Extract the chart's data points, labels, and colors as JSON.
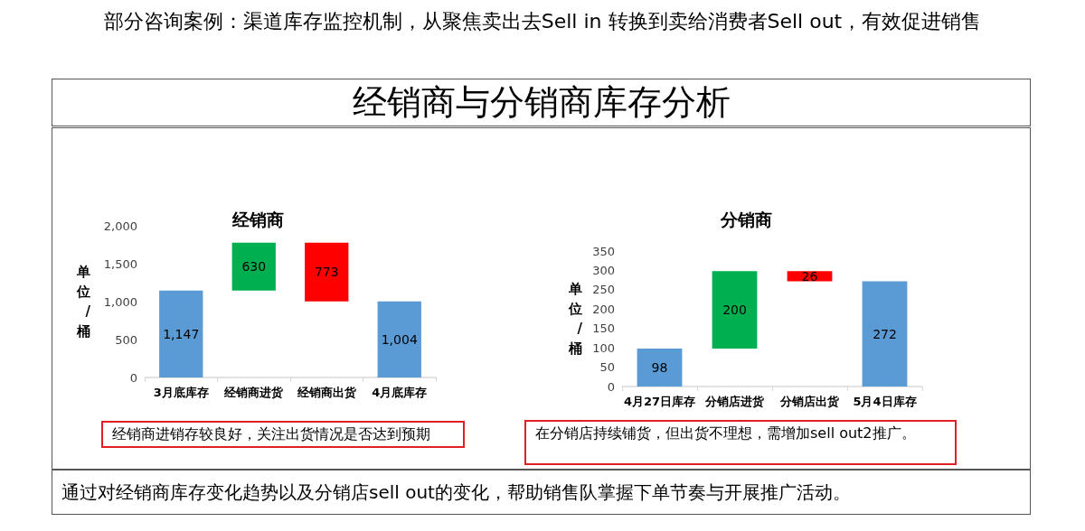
{
  "chart_data": [
    {
      "type": "bar",
      "title": "经销商",
      "ylabel": "单位/桶",
      "categories": [
        "3月底库存",
        "经销商进货",
        "经销商出货",
        "4月底库存"
      ],
      "values": [
        1147,
        630,
        773,
        1004
      ],
      "base": [
        0,
        1147,
        1004,
        0
      ],
      "colors": [
        "#5b9bd5",
        "#00b050",
        "#ff0000",
        "#5b9bd5"
      ],
      "value_labels": [
        "1,147",
        "630",
        "773",
        "1,004"
      ],
      "ylim": [
        0,
        2000
      ],
      "yticks": [
        0,
        500,
        {
          "value": 1000,
          "label": "1,000"
        },
        {
          "value": 1500,
          "label": "1,500"
        },
        {
          "value": 2000,
          "label": "2,000"
        }
      ],
      "grid": false,
      "annotations": [
        "部分咨询案例：渠道库存监控机制，从聚焦卖出去Sell in 转换到卖给消费者Sell out，有效促进销售",
        "经销商与分销商库存分析",
        "经销商进销存较良好，关注出货情况是否达到预期"
      ]
    },
    {
      "type": "bar",
      "title": "分销商",
      "ylabel": "单位/桶",
      "categories": [
        "4月27日库存",
        "分销店进货",
        "分销店出货",
        "5月4日库存"
      ],
      "values": [
        98,
        200,
        26,
        272
      ],
      "base": [
        0,
        98,
        272,
        0
      ],
      "colors": [
        "#5b9bd5",
        "#00b050",
        "#ff0000",
        "#5b9bd5"
      ],
      "data_labels": true,
      "ylim": [
        0,
        350
      ],
      "yticks": [
        0,
        50,
        100,
        150,
        200,
        250,
        300,
        350
      ],
      "grid": false,
      "annotations": [
        "在分销店持续铺货，但出货不理想，需增加sell out2推广。",
        "通过对经销商库存变化趋势以及分销店sell out的变化，帮助销售队掌握下单节奏与开展推广活动。"
      ]
    }
  ]
}
